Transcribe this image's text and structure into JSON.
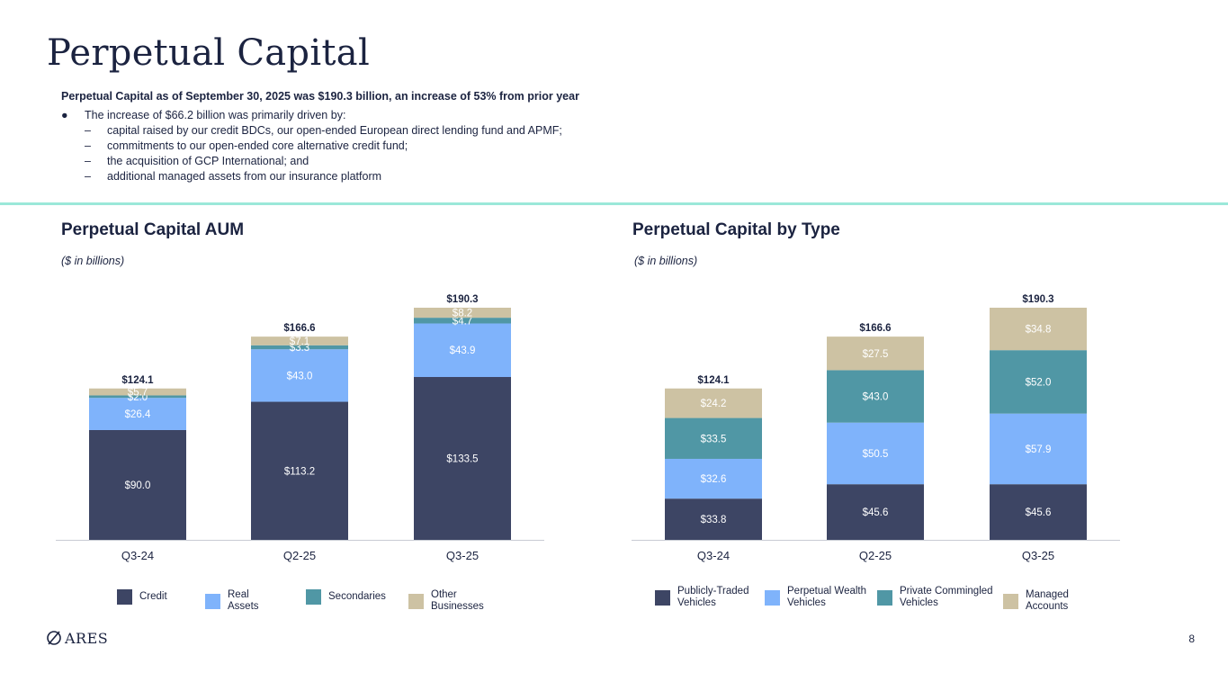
{
  "page": {
    "title": "Perpetual Capital",
    "page_number": "8",
    "logo_text": "ARES"
  },
  "intro": {
    "headline": "Perpetual Capital as of September 30, 2025 was $190.3 billion, an increase of 53% from prior year",
    "bullet_mark": "●",
    "dash_mark": "–",
    "bullet": "The increase of $66.2 billion was primarily driven by:",
    "sub_items": [
      "capital raised by our credit BDCs, our open-ended European direct lending fund and APMF;",
      "commitments to our open-ended core alternative credit fund;",
      "the acquisition of GCP International; and",
      "additional managed assets from our insurance platform"
    ]
  },
  "colors": {
    "accent_rule": "#9be8d9",
    "navy": "#3d4564",
    "light_blue": "#7fb3fb",
    "teal": "#5097a5",
    "tan": "#cdc2a3",
    "text": "#1b2340"
  },
  "chart_data": [
    {
      "type": "bar",
      "stacked": true,
      "title": "Perpetual Capital AUM",
      "subtitle": "($ in billions)",
      "categories": [
        "Q3-24",
        "Q2-25",
        "Q3-25"
      ],
      "series": [
        {
          "name": "Credit",
          "color": "#3d4564",
          "values": [
            90.0,
            113.2,
            133.5
          ],
          "labels": [
            "$90.0",
            "$113.2",
            "$133.5"
          ]
        },
        {
          "name": "Real Assets",
          "color": "#7fb3fb",
          "values": [
            26.4,
            43.0,
            43.9
          ],
          "labels": [
            "$26.4",
            "$43.0",
            "$43.9"
          ]
        },
        {
          "name": "Secondaries",
          "color": "#5097a5",
          "values": [
            2.0,
            3.3,
            4.7
          ],
          "labels": [
            "$2.0",
            "$3.3",
            "$4.7"
          ]
        },
        {
          "name": "Other Businesses",
          "color": "#cdc2a3",
          "values": [
            5.7,
            7.1,
            8.2
          ],
          "labels": [
            "$5.7",
            "$7.1",
            "$8.2"
          ]
        }
      ],
      "totals": [
        "$124.1",
        "$166.6",
        "$190.3"
      ],
      "total_values": [
        124.1,
        166.6,
        190.3
      ],
      "ylim": [
        0,
        190.3
      ],
      "legend_position": "bottom"
    },
    {
      "type": "bar",
      "stacked": true,
      "title": "Perpetual Capital by Type",
      "subtitle": "($ in billions)",
      "categories": [
        "Q3-24",
        "Q2-25",
        "Q3-25"
      ],
      "series": [
        {
          "name": "Publicly-Traded Vehicles",
          "color": "#3d4564",
          "values": [
            33.8,
            45.6,
            45.6
          ],
          "labels": [
            "$33.8",
            "$45.6",
            "$45.6"
          ]
        },
        {
          "name": "Perpetual Wealth Vehicles",
          "color": "#7fb3fb",
          "values": [
            32.6,
            50.5,
            57.9
          ],
          "labels": [
            "$32.6",
            "$50.5",
            "$57.9"
          ]
        },
        {
          "name": "Private Commingled Vehicles",
          "color": "#5097a5",
          "values": [
            33.5,
            43.0,
            52.0
          ],
          "labels": [
            "$33.5",
            "$43.0",
            "$52.0"
          ]
        },
        {
          "name": "Managed Accounts",
          "color": "#cdc2a3",
          "values": [
            24.2,
            27.5,
            34.8
          ],
          "labels": [
            "$24.2",
            "$27.5",
            "$34.8"
          ]
        }
      ],
      "totals": [
        "$124.1",
        "$166.6",
        "$190.3"
      ],
      "total_values": [
        124.1,
        166.6,
        190.3
      ],
      "ylim": [
        0,
        190.3
      ],
      "legend_position": "bottom"
    }
  ]
}
